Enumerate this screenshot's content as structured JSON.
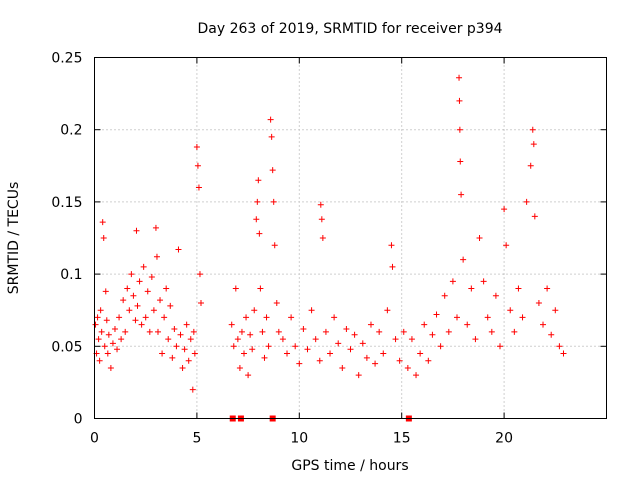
{
  "chart_data": {
    "type": "scatter",
    "title": "Day 263 of 2019, SRMTID for receiver p394",
    "xlabel": "GPS time / hours",
    "ylabel": "SRMTID / TECUs",
    "xlim": [
      0,
      25
    ],
    "ylim": [
      0,
      0.25
    ],
    "grid": true,
    "marker": "plus",
    "series_color": "#ff0000",
    "x_ticks": [
      {
        "value": 0,
        "label": "0"
      },
      {
        "value": 5,
        "label": "5"
      },
      {
        "value": 10,
        "label": "10"
      },
      {
        "value": 15,
        "label": "15"
      },
      {
        "value": 20,
        "label": "20"
      }
    ],
    "y_ticks": [
      {
        "value": 0,
        "label": "0"
      },
      {
        "value": 0.05,
        "label": "0.05"
      },
      {
        "value": 0.1,
        "label": "0.1"
      },
      {
        "value": 0.15,
        "label": "0.15"
      },
      {
        "value": 0.2,
        "label": "0.2"
      },
      {
        "value": 0.25,
        "label": "0.25"
      }
    ],
    "series": [
      {
        "name": "SRMTID",
        "points": [
          [
            0.05,
            0.065
          ],
          [
            0.1,
            0.045
          ],
          [
            0.15,
            0.07
          ],
          [
            0.2,
            0.055
          ],
          [
            0.25,
            0.04
          ],
          [
            0.3,
            0.075
          ],
          [
            0.35,
            0.06
          ],
          [
            0.4,
            0.136
          ],
          [
            0.45,
            0.125
          ],
          [
            0.5,
            0.05
          ],
          [
            0.55,
            0.088
          ],
          [
            0.6,
            0.068
          ],
          [
            0.65,
            0.045
          ],
          [
            0.7,
            0.058
          ],
          [
            0.8,
            0.035
          ],
          [
            0.9,
            0.052
          ],
          [
            1.0,
            0.062
          ],
          [
            1.1,
            0.048
          ],
          [
            1.2,
            0.07
          ],
          [
            1.3,
            0.055
          ],
          [
            1.4,
            0.082
          ],
          [
            1.5,
            0.06
          ],
          [
            1.6,
            0.09
          ],
          [
            1.7,
            0.075
          ],
          [
            1.8,
            0.1
          ],
          [
            1.9,
            0.085
          ],
          [
            2.0,
            0.068
          ],
          [
            2.05,
            0.13
          ],
          [
            2.1,
            0.078
          ],
          [
            2.2,
            0.095
          ],
          [
            2.3,
            0.065
          ],
          [
            2.4,
            0.105
          ],
          [
            2.5,
            0.07
          ],
          [
            2.6,
            0.088
          ],
          [
            2.7,
            0.06
          ],
          [
            2.8,
            0.098
          ],
          [
            2.9,
            0.075
          ],
          [
            3.0,
            0.132
          ],
          [
            3.05,
            0.112
          ],
          [
            3.1,
            0.06
          ],
          [
            3.2,
            0.082
          ],
          [
            3.3,
            0.045
          ],
          [
            3.4,
            0.07
          ],
          [
            3.5,
            0.09
          ],
          [
            3.6,
            0.055
          ],
          [
            3.7,
            0.078
          ],
          [
            3.8,
            0.042
          ],
          [
            3.9,
            0.062
          ],
          [
            4.0,
            0.05
          ],
          [
            4.1,
            0.117
          ],
          [
            4.2,
            0.058
          ],
          [
            4.3,
            0.035
          ],
          [
            4.4,
            0.048
          ],
          [
            4.5,
            0.065
          ],
          [
            4.6,
            0.04
          ],
          [
            4.7,
            0.055
          ],
          [
            4.8,
            0.02
          ],
          [
            4.85,
            0.06
          ],
          [
            4.9,
            0.045
          ],
          [
            5.0,
            0.188
          ],
          [
            5.05,
            0.175
          ],
          [
            5.1,
            0.16
          ],
          [
            5.15,
            0.1
          ],
          [
            5.2,
            0.08
          ],
          [
            6.7,
            0.065
          ],
          [
            6.8,
            0.05
          ],
          [
            6.9,
            0.09
          ],
          [
            7.0,
            0.055
          ],
          [
            7.1,
            0.035
          ],
          [
            7.2,
            0.06
          ],
          [
            7.3,
            0.045
          ],
          [
            7.4,
            0.07
          ],
          [
            7.5,
            0.03
          ],
          [
            7.6,
            0.058
          ],
          [
            7.7,
            0.048
          ],
          [
            7.8,
            0.075
          ],
          [
            7.9,
            0.138
          ],
          [
            7.95,
            0.15
          ],
          [
            8.0,
            0.165
          ],
          [
            8.05,
            0.128
          ],
          [
            8.1,
            0.09
          ],
          [
            8.2,
            0.06
          ],
          [
            8.3,
            0.042
          ],
          [
            8.4,
            0.07
          ],
          [
            8.5,
            0.05
          ],
          [
            8.6,
            0.207
          ],
          [
            8.65,
            0.195
          ],
          [
            8.7,
            0.172
          ],
          [
            8.75,
            0.15
          ],
          [
            8.8,
            0.12
          ],
          [
            8.9,
            0.08
          ],
          [
            9.0,
            0.06
          ],
          [
            9.2,
            0.055
          ],
          [
            9.4,
            0.045
          ],
          [
            9.6,
            0.07
          ],
          [
            9.8,
            0.05
          ],
          [
            10.0,
            0.038
          ],
          [
            10.2,
            0.062
          ],
          [
            10.4,
            0.048
          ],
          [
            10.6,
            0.075
          ],
          [
            10.8,
            0.055
          ],
          [
            11.0,
            0.04
          ],
          [
            11.05,
            0.148
          ],
          [
            11.1,
            0.138
          ],
          [
            11.15,
            0.125
          ],
          [
            11.3,
            0.06
          ],
          [
            11.5,
            0.045
          ],
          [
            11.7,
            0.07
          ],
          [
            11.9,
            0.052
          ],
          [
            12.1,
            0.035
          ],
          [
            12.3,
            0.062
          ],
          [
            12.5,
            0.048
          ],
          [
            12.7,
            0.058
          ],
          [
            12.9,
            0.03
          ],
          [
            13.1,
            0.052
          ],
          [
            13.3,
            0.042
          ],
          [
            13.5,
            0.065
          ],
          [
            13.7,
            0.038
          ],
          [
            13.9,
            0.06
          ],
          [
            14.1,
            0.045
          ],
          [
            14.3,
            0.075
          ],
          [
            14.5,
            0.12
          ],
          [
            14.55,
            0.105
          ],
          [
            14.7,
            0.055
          ],
          [
            14.9,
            0.04
          ],
          [
            15.1,
            0.06
          ],
          [
            15.3,
            0.035
          ],
          [
            15.5,
            0.055
          ],
          [
            15.7,
            0.03
          ],
          [
            15.9,
            0.045
          ],
          [
            16.1,
            0.065
          ],
          [
            16.3,
            0.04
          ],
          [
            16.5,
            0.058
          ],
          [
            16.7,
            0.072
          ],
          [
            16.9,
            0.05
          ],
          [
            17.1,
            0.085
          ],
          [
            17.3,
            0.06
          ],
          [
            17.5,
            0.095
          ],
          [
            17.7,
            0.07
          ],
          [
            17.8,
            0.236
          ],
          [
            17.82,
            0.22
          ],
          [
            17.84,
            0.2
          ],
          [
            17.86,
            0.178
          ],
          [
            17.9,
            0.155
          ],
          [
            18.0,
            0.11
          ],
          [
            18.2,
            0.065
          ],
          [
            18.4,
            0.09
          ],
          [
            18.6,
            0.055
          ],
          [
            18.8,
            0.125
          ],
          [
            19.0,
            0.095
          ],
          [
            19.2,
            0.07
          ],
          [
            19.4,
            0.06
          ],
          [
            19.6,
            0.085
          ],
          [
            19.8,
            0.05
          ],
          [
            20.0,
            0.145
          ],
          [
            20.1,
            0.12
          ],
          [
            20.3,
            0.075
          ],
          [
            20.5,
            0.06
          ],
          [
            20.7,
            0.09
          ],
          [
            20.9,
            0.07
          ],
          [
            21.1,
            0.15
          ],
          [
            21.3,
            0.175
          ],
          [
            21.4,
            0.2
          ],
          [
            21.45,
            0.19
          ],
          [
            21.5,
            0.14
          ],
          [
            21.7,
            0.08
          ],
          [
            21.9,
            0.065
          ],
          [
            22.1,
            0.09
          ],
          [
            22.3,
            0.058
          ],
          [
            22.5,
            0.075
          ],
          [
            22.7,
            0.05
          ],
          [
            22.9,
            0.045
          ]
        ],
        "gap_markers": [
          6.75,
          7.15,
          8.7,
          15.35
        ]
      }
    ]
  }
}
